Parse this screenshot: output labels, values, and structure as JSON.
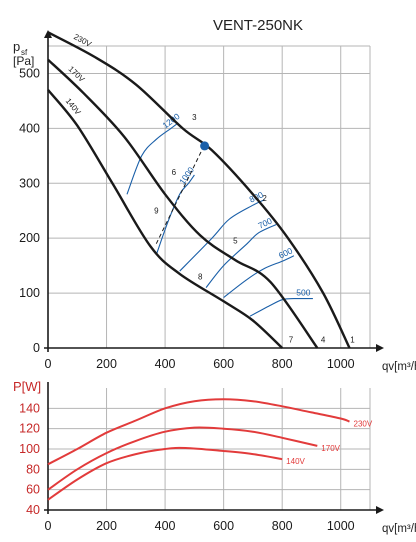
{
  "chart_data": [
    {
      "type": "line",
      "title": "VENT-250NK",
      "ylabel_main": "p",
      "ylabel_sub": "sf",
      "yunit": "[Pa]",
      "xlabel": "qv[m³/h]",
      "xlim": [
        0,
        1100
      ],
      "ylim": [
        0,
        550
      ],
      "xticks": [
        0,
        200,
        400,
        600,
        800,
        1000
      ],
      "yticks": [
        0,
        100,
        200,
        300,
        400,
        500
      ],
      "grid": true,
      "series": [
        {
          "name": "230V",
          "x": [
            0,
            160,
            300,
            460,
            560,
            700,
            820,
            940,
            1030
          ],
          "y": [
            575,
            530,
            480,
            400,
            360,
            280,
            200,
            100,
            0
          ]
        },
        {
          "name": "170V",
          "x": [
            0,
            120,
            260,
            400,
            520,
            640,
            760,
            920
          ],
          "y": [
            525,
            465,
            385,
            280,
            205,
            160,
            120,
            0
          ]
        },
        {
          "name": "140V",
          "x": [
            0,
            100,
            220,
            350,
            450,
            600,
            700,
            800
          ],
          "y": [
            470,
            405,
            300,
            185,
            135,
            85,
            50,
            0
          ]
        }
      ],
      "resistance_curves": [
        {
          "label": "1200",
          "x": [
            270,
            320,
            370,
            420,
            445
          ],
          "y": [
            280,
            350,
            380,
            400,
            410
          ]
        },
        {
          "label": "1000",
          "x": [
            370,
            410,
            450,
            480,
            500
          ],
          "y": [
            170,
            230,
            280,
            300,
            315
          ]
        },
        {
          "label": "800",
          "x": [
            450,
            560,
            620,
            700,
            740
          ],
          "y": [
            140,
            200,
            235,
            260,
            270
          ]
        },
        {
          "label": "700",
          "x": [
            540,
            600,
            680,
            720,
            780
          ],
          "y": [
            110,
            150,
            190,
            210,
            225
          ]
        },
        {
          "label": "600",
          "x": [
            600,
            680,
            740,
            800,
            840
          ],
          "y": [
            92,
            125,
            145,
            158,
            168
          ]
        },
        {
          "label": "500",
          "x": [
            690,
            750,
            800,
            840,
            905
          ],
          "y": [
            58,
            75,
            88,
            90,
            90
          ]
        }
      ],
      "duct_line": {
        "x": [
          370,
          530
        ],
        "y": [
          190,
          365
        ]
      },
      "operating_point": {
        "x": 535,
        "y": 368
      },
      "point_labels": [
        {
          "label": "1",
          "x": 1040,
          "y": 10
        },
        {
          "label": "2",
          "x": 740,
          "y": 268
        },
        {
          "label": "3",
          "x": 500,
          "y": 415
        },
        {
          "label": "4",
          "x": 940,
          "y": 10
        },
        {
          "label": "5",
          "x": 640,
          "y": 190
        },
        {
          "label": "6",
          "x": 430,
          "y": 315
        },
        {
          "label": "7",
          "x": 830,
          "y": 10
        },
        {
          "label": "8",
          "x": 520,
          "y": 125
        },
        {
          "label": "9",
          "x": 370,
          "y": 245
        }
      ]
    },
    {
      "type": "line",
      "ylabel": "P[W]",
      "xlabel": "qv[m³/h]",
      "xlim": [
        0,
        1100
      ],
      "ylim": [
        40,
        160
      ],
      "xticks": [
        0,
        200,
        400,
        600,
        800,
        1000
      ],
      "yticks": [
        40,
        60,
        80,
        100,
        120,
        140
      ],
      "grid": true,
      "series": [
        {
          "name": "230V",
          "x": [
            0,
            100,
            200,
            300,
            400,
            500,
            600,
            700,
            800,
            900,
            1000,
            1030
          ],
          "y": [
            85,
            100,
            116,
            128,
            140,
            147,
            149,
            147,
            142,
            136,
            130,
            127
          ]
        },
        {
          "name": "170V",
          "x": [
            0,
            100,
            200,
            300,
            400,
            500,
            600,
            700,
            800,
            920
          ],
          "y": [
            60,
            80,
            96,
            108,
            117,
            121,
            120,
            117,
            111,
            103
          ]
        },
        {
          "name": "140V",
          "x": [
            0,
            100,
            200,
            300,
            400,
            470,
            600,
            700,
            800
          ],
          "y": [
            50,
            70,
            86,
            95,
            100,
            101,
            98,
            95,
            90
          ]
        }
      ]
    }
  ]
}
